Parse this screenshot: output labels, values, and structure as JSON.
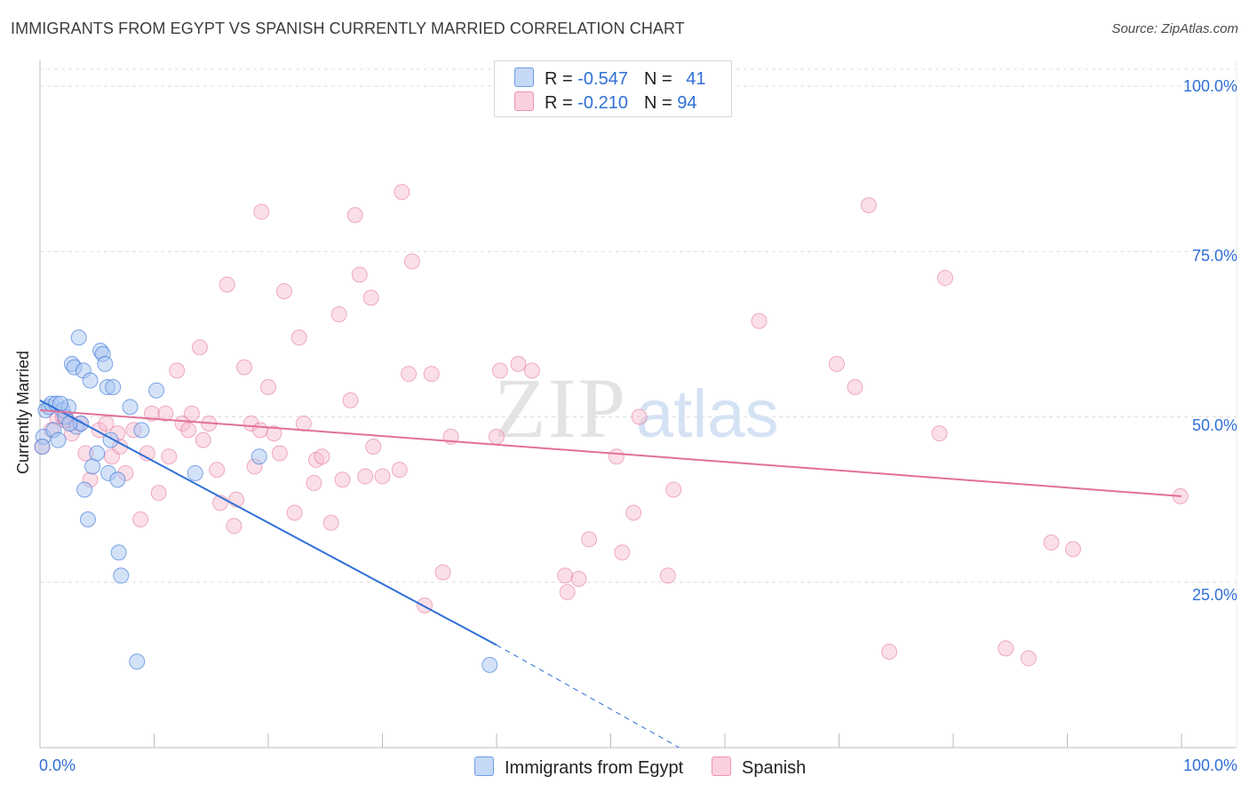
{
  "header": {
    "title": "IMMIGRANTS FROM EGYPT VS SPANISH CURRENTLY MARRIED CORRELATION CHART",
    "source": "Source: ZipAtlas.com"
  },
  "watermark": {
    "zip": "ZIP",
    "atlas": "atlas"
  },
  "legend": {
    "rows": [
      {
        "r_label": "R = ",
        "r_value": "-0.547",
        "n_label": "N = ",
        "n_value": "41"
      },
      {
        "r_label": "R = ",
        "r_value": "-0.210",
        "n_label": "N = ",
        "n_value": "94"
      }
    ]
  },
  "chart_data": {
    "type": "scatter",
    "title": "IMMIGRANTS FROM EGYPT VS SPANISH CURRENTLY MARRIED CORRELATION CHART",
    "xlabel": "",
    "ylabel": "Currently Married",
    "xlim": [
      0,
      100
    ],
    "ylim": [
      0,
      105
    ],
    "x_tick_labels": [
      "0.0%",
      "100.0%"
    ],
    "y_tick_labels": [
      "25.0%",
      "50.0%",
      "75.0%",
      "100.0%"
    ],
    "y_ticks": [
      25,
      50,
      75,
      100
    ],
    "colors": {
      "egypt": "#2f6fd6",
      "spanish": "#e27097",
      "egypt_fill": "#a9c6f2",
      "spanish_fill": "#f6b8cb"
    },
    "series": [
      {
        "name": "Immigrants from Egypt",
        "r": -0.547,
        "n": 41,
        "trend": {
          "x0": 0,
          "y0": 52.5,
          "x1": 40,
          "y1": 15.5,
          "dash_to_x": 56,
          "dash_to_y": 0
        },
        "points": [
          [
            0.3,
            47
          ],
          [
            0.5,
            51
          ],
          [
            0.8,
            51.5
          ],
          [
            1.0,
            52
          ],
          [
            1.2,
            48
          ],
          [
            1.4,
            52
          ],
          [
            1.6,
            46.5
          ],
          [
            2.0,
            51
          ],
          [
            2.2,
            50
          ],
          [
            2.5,
            51.5
          ],
          [
            2.8,
            58
          ],
          [
            3.0,
            57.5
          ],
          [
            3.2,
            48.5
          ],
          [
            3.4,
            62
          ],
          [
            3.6,
            49
          ],
          [
            3.8,
            57
          ],
          [
            3.9,
            39
          ],
          [
            4.2,
            34.5
          ],
          [
            4.4,
            55.5
          ],
          [
            4.6,
            42.5
          ],
          [
            5.0,
            44.5
          ],
          [
            5.3,
            60
          ],
          [
            5.5,
            59.5
          ],
          [
            5.7,
            58
          ],
          [
            5.9,
            54.5
          ],
          [
            6.0,
            41.5
          ],
          [
            6.2,
            46.5
          ],
          [
            6.4,
            54.5
          ],
          [
            6.8,
            40.5
          ],
          [
            6.9,
            29.5
          ],
          [
            7.1,
            26
          ],
          [
            7.9,
            51.5
          ],
          [
            8.5,
            13
          ],
          [
            8.9,
            48
          ],
          [
            10.2,
            54
          ],
          [
            13.6,
            41.5
          ],
          [
            19.2,
            44
          ],
          [
            39.4,
            12.5
          ],
          [
            0.2,
            45.5
          ],
          [
            1.8,
            52
          ],
          [
            2.6,
            49
          ]
        ]
      },
      {
        "name": "Spanish",
        "r": -0.21,
        "n": 94,
        "trend": {
          "x0": 0,
          "y0": 51,
          "x1": 100,
          "y1": 38
        },
        "points": [
          [
            0.2,
            45.5
          ],
          [
            1.0,
            48
          ],
          [
            1.5,
            50
          ],
          [
            2.0,
            50
          ],
          [
            2.4,
            49.5
          ],
          [
            2.8,
            47.5
          ],
          [
            3.5,
            49
          ],
          [
            4.0,
            44.5
          ],
          [
            4.4,
            40.5
          ],
          [
            5.2,
            48
          ],
          [
            5.8,
            49
          ],
          [
            6.3,
            44
          ],
          [
            7.0,
            45.5
          ],
          [
            7.5,
            41.5
          ],
          [
            8.2,
            48
          ],
          [
            8.8,
            34.5
          ],
          [
            9.4,
            44.5
          ],
          [
            9.8,
            50.5
          ],
          [
            10.4,
            38.5
          ],
          [
            11.0,
            50.5
          ],
          [
            11.3,
            44
          ],
          [
            12.0,
            57
          ],
          [
            12.5,
            49
          ],
          [
            13.0,
            48
          ],
          [
            13.3,
            50.5
          ],
          [
            14.0,
            60.5
          ],
          [
            14.3,
            46.5
          ],
          [
            14.8,
            49
          ],
          [
            15.5,
            42
          ],
          [
            15.8,
            37
          ],
          [
            16.4,
            70
          ],
          [
            17.0,
            33.5
          ],
          [
            17.2,
            37.5
          ],
          [
            17.9,
            57.5
          ],
          [
            18.5,
            49
          ],
          [
            18.8,
            42.5
          ],
          [
            19.3,
            48
          ],
          [
            19.4,
            81
          ],
          [
            20.0,
            54.5
          ],
          [
            20.5,
            47.5
          ],
          [
            21.0,
            44.5
          ],
          [
            21.4,
            69
          ],
          [
            22.3,
            35.5
          ],
          [
            22.7,
            62
          ],
          [
            23.1,
            49
          ],
          [
            24.0,
            40
          ],
          [
            24.2,
            43.5
          ],
          [
            24.7,
            44
          ],
          [
            25.5,
            34
          ],
          [
            26.2,
            65.5
          ],
          [
            26.5,
            40.5
          ],
          [
            27.2,
            52.5
          ],
          [
            27.6,
            80.5
          ],
          [
            28.0,
            71.5
          ],
          [
            28.5,
            41
          ],
          [
            29.0,
            68
          ],
          [
            29.2,
            45.5
          ],
          [
            30.0,
            41
          ],
          [
            31.5,
            42
          ],
          [
            31.7,
            84
          ],
          [
            32.3,
            56.5
          ],
          [
            32.6,
            73.5
          ],
          [
            33.7,
            21.5
          ],
          [
            34.3,
            56.5
          ],
          [
            35.3,
            26.5
          ],
          [
            36.0,
            47
          ],
          [
            40.0,
            47
          ],
          [
            40.3,
            57
          ],
          [
            41.9,
            58
          ],
          [
            43.1,
            57
          ],
          [
            46.0,
            26
          ],
          [
            46.2,
            23.5
          ],
          [
            47.2,
            25.5
          ],
          [
            48.1,
            31.5
          ],
          [
            50.5,
            44
          ],
          [
            51.0,
            29.5
          ],
          [
            52.0,
            35.5
          ],
          [
            52.5,
            50
          ],
          [
            55.0,
            26
          ],
          [
            55.5,
            39
          ],
          [
            63.0,
            64.5
          ],
          [
            69.8,
            58
          ],
          [
            71.4,
            54.5
          ],
          [
            72.6,
            82
          ],
          [
            74.4,
            14.5
          ],
          [
            78.8,
            47.5
          ],
          [
            79.3,
            71
          ],
          [
            84.6,
            15
          ],
          [
            86.6,
            13.5
          ],
          [
            88.6,
            31
          ],
          [
            90.5,
            30
          ],
          [
            99.9,
            38
          ],
          [
            2.2,
            49.5
          ],
          [
            6.8,
            47.5
          ]
        ]
      }
    ]
  },
  "bottom_legend": {
    "items": [
      {
        "label": "Immigrants from Egypt"
      },
      {
        "label": "Spanish"
      }
    ]
  }
}
